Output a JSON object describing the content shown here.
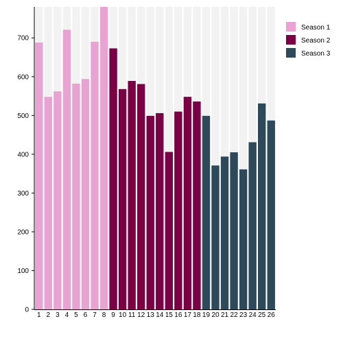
{
  "chart_data": {
    "type": "bar",
    "title": "",
    "xlabel": "",
    "ylabel": "",
    "ylim": [
      0,
      780
    ],
    "yticks": [
      0,
      100,
      200,
      300,
      400,
      500,
      600,
      700
    ],
    "grid": false,
    "background_bands": true,
    "legend_position": "top-right",
    "categories": [
      "1",
      "2",
      "3",
      "4",
      "5",
      "6",
      "7",
      "8",
      "9",
      "10",
      "11",
      "12",
      "13",
      "14",
      "15",
      "16",
      "17",
      "18",
      "19",
      "20",
      "21",
      "22",
      "23",
      "24",
      "25",
      "26"
    ],
    "series": [
      {
        "name": "Season 1",
        "color": "#e8a3d3",
        "x": [
          "1",
          "2",
          "3",
          "4",
          "5",
          "6",
          "7",
          "8"
        ],
        "values": [
          688,
          548,
          562,
          721,
          582,
          594,
          690,
          780
        ]
      },
      {
        "name": "Season 2",
        "color": "#7a0046",
        "x": [
          "9",
          "10",
          "11",
          "12",
          "13",
          "14",
          "15",
          "16",
          "17",
          "18"
        ],
        "values": [
          673,
          568,
          589,
          581,
          499,
          506,
          406,
          510,
          548,
          536
        ]
      },
      {
        "name": "Season 3",
        "color": "#2e4a5a",
        "x": [
          "19",
          "20",
          "21",
          "22",
          "23",
          "24",
          "25",
          "26"
        ],
        "values": [
          499,
          371,
          394,
          405,
          361,
          431,
          531,
          487
        ]
      }
    ]
  }
}
